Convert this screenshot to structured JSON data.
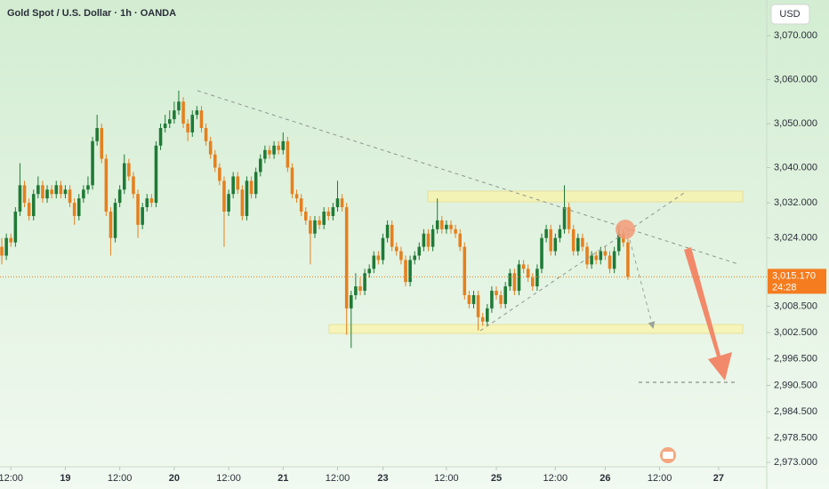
{
  "chart_data": {
    "type": "candlestick",
    "title": "Gold Spot / U.S. Dollar · 1h · OANDA",
    "currency": "USD",
    "last_price_label": "3,015.170",
    "countdown": "24:28",
    "up_color": "#1f7a36",
    "down_color": "#e5801f",
    "xlim": [
      -0.4,
      168.6
    ],
    "ylim": [
      2972,
      3078.1
    ],
    "xticks": [
      {
        "value": 2,
        "label": "12:00"
      },
      {
        "value": 14,
        "label": "19"
      },
      {
        "value": 26,
        "label": "12:00"
      },
      {
        "value": 38,
        "label": "20"
      },
      {
        "value": 50,
        "label": "12:00"
      },
      {
        "value": 62,
        "label": "21"
      },
      {
        "value": 74,
        "label": "12:00"
      },
      {
        "value": 84,
        "label": "23"
      },
      {
        "value": 98,
        "label": "12:00"
      },
      {
        "value": 109,
        "label": "25"
      },
      {
        "value": 122,
        "label": "12:00"
      },
      {
        "value": 133,
        "label": "26"
      },
      {
        "value": 145,
        "label": "12:00"
      },
      {
        "value": 158,
        "label": "27"
      }
    ],
    "yticks": [
      {
        "value": 3070,
        "label": "3,070.000"
      },
      {
        "value": 3060,
        "label": "3,060.000"
      },
      {
        "value": 3050,
        "label": "3,050.000"
      },
      {
        "value": 3040,
        "label": "3,040.000"
      },
      {
        "value": 3032,
        "label": "3,032.000"
      },
      {
        "value": 3024,
        "label": "3,024.000"
      },
      {
        "value": 3008.5,
        "label": "3,008.500"
      },
      {
        "value": 3002.5,
        "label": "3,002.500"
      },
      {
        "value": 2996.5,
        "label": "2,996.500"
      },
      {
        "value": 2990.5,
        "label": "2,990.500"
      },
      {
        "value": 2984.5,
        "label": "2,984.500"
      },
      {
        "value": 2978.5,
        "label": "2,978.500"
      },
      {
        "value": 2973,
        "label": "2,973.000"
      }
    ],
    "candles": [
      [
        3022,
        3024,
        3018,
        3020
      ],
      [
        3020,
        3025,
        3019,
        3024
      ],
      [
        3024,
        3025,
        3022,
        3023
      ],
      [
        3023,
        3031,
        3022,
        3030
      ],
      [
        3030,
        3041,
        3029,
        3036
      ],
      [
        3036,
        3037,
        3031,
        3032
      ],
      [
        3032,
        3033,
        3028,
        3029
      ],
      [
        3029,
        3035,
        3028,
        3034
      ],
      [
        3034,
        3038,
        3033,
        3036
      ],
      [
        3036,
        3037,
        3032,
        3033
      ],
      [
        3033,
        3036,
        3032,
        3035
      ],
      [
        3035,
        3036,
        3033,
        3034
      ],
      [
        3034,
        3037,
        3033,
        3036
      ],
      [
        3036,
        3037,
        3033,
        3034
      ],
      [
        3034,
        3036,
        3033,
        3035
      ],
      [
        3035,
        3036,
        3031,
        3032
      ],
      [
        3032,
        3033,
        3027,
        3029
      ],
      [
        3029,
        3034,
        3028,
        3033
      ],
      [
        3033,
        3036,
        3032,
        3035
      ],
      [
        3035,
        3038,
        3034,
        3036
      ],
      [
        3036,
        3047,
        3035,
        3046
      ],
      [
        3046,
        3052,
        3045,
        3049
      ],
      [
        3049,
        3050,
        3041,
        3042
      ],
      [
        3042,
        3043,
        3029,
        3030
      ],
      [
        3030,
        3031,
        3020,
        3024
      ],
      [
        3024,
        3033,
        3023,
        3032
      ],
      [
        3032,
        3036,
        3031,
        3035
      ],
      [
        3035,
        3043,
        3034,
        3041
      ],
      [
        3041,
        3042,
        3037,
        3038
      ],
      [
        3038,
        3039,
        3033,
        3034
      ],
      [
        3034,
        3035,
        3024,
        3027
      ],
      [
        3027,
        3032,
        3026,
        3031
      ],
      [
        3031,
        3034,
        3030,
        3033
      ],
      [
        3033,
        3034,
        3031,
        3032
      ],
      [
        3032,
        3046,
        3031,
        3045
      ],
      [
        3045,
        3050,
        3044,
        3049
      ],
      [
        3049,
        3052,
        3048,
        3050
      ],
      [
        3050,
        3053,
        3049,
        3051
      ],
      [
        3051,
        3055,
        3050,
        3053
      ],
      [
        3053,
        3057.5,
        3052,
        3055
      ],
      [
        3055,
        3056,
        3049,
        3050
      ],
      [
        3050,
        3051,
        3046,
        3048
      ],
      [
        3048,
        3053,
        3047,
        3052
      ],
      [
        3052,
        3054,
        3051,
        3053
      ],
      [
        3053,
        3054,
        3048,
        3049
      ],
      [
        3049,
        3050,
        3045,
        3046
      ],
      [
        3046,
        3047,
        3042,
        3043
      ],
      [
        3043,
        3044,
        3039,
        3040
      ],
      [
        3040,
        3041,
        3036,
        3037
      ],
      [
        3037,
        3038,
        3022,
        3030
      ],
      [
        3030,
        3035,
        3029,
        3034
      ],
      [
        3034,
        3039,
        3033,
        3038
      ],
      [
        3038,
        3039,
        3034,
        3035
      ],
      [
        3035,
        3036,
        3028,
        3029
      ],
      [
        3029,
        3038,
        3028,
        3037
      ],
      [
        3037,
        3038,
        3033,
        3034
      ],
      [
        3034,
        3040,
        3033,
        3039
      ],
      [
        3039,
        3043,
        3038,
        3042
      ],
      [
        3042,
        3045,
        3041,
        3044
      ],
      [
        3044,
        3045,
        3042,
        3043
      ],
      [
        3043,
        3046,
        3042,
        3045
      ],
      [
        3045,
        3046,
        3043,
        3044
      ],
      [
        3044,
        3048,
        3043,
        3046
      ],
      [
        3046,
        3047,
        3039,
        3040
      ],
      [
        3040,
        3041,
        3033,
        3034
      ],
      [
        3034,
        3035,
        3032,
        3033
      ],
      [
        3033,
        3034,
        3029,
        3030
      ],
      [
        3030,
        3031,
        3027,
        3028
      ],
      [
        3028,
        3029,
        3018,
        3025
      ],
      [
        3025,
        3029,
        3024,
        3028
      ],
      [
        3028,
        3029,
        3026,
        3027
      ],
      [
        3027,
        3031,
        3026,
        3030
      ],
      [
        3030,
        3031,
        3028,
        3029
      ],
      [
        3029,
        3032,
        3028,
        3031
      ],
      [
        3031,
        3037,
        3030,
        3033
      ],
      [
        3033,
        3034,
        3030,
        3031
      ],
      [
        3031,
        3032,
        3002,
        3008
      ],
      [
        3008,
        3012,
        2999,
        3011
      ],
      [
        3011,
        3016,
        3010,
        3013
      ],
      [
        3013,
        3015,
        3011,
        3012
      ],
      [
        3012,
        3017,
        3011,
        3016
      ],
      [
        3016,
        3018,
        3015,
        3017
      ],
      [
        3017,
        3021,
        3016,
        3020
      ],
      [
        3020,
        3021,
        3018,
        3019
      ],
      [
        3019,
        3025,
        3018,
        3024
      ],
      [
        3024,
        3028,
        3023,
        3027
      ],
      [
        3027,
        3028,
        3021,
        3022
      ],
      [
        3022,
        3023,
        3020,
        3021
      ],
      [
        3021,
        3022,
        3018,
        3019
      ],
      [
        3019,
        3020,
        3013,
        3014
      ],
      [
        3014,
        3020,
        3013,
        3019
      ],
      [
        3019,
        3021,
        3018,
        3020
      ],
      [
        3020,
        3023,
        3019,
        3022
      ],
      [
        3022,
        3026,
        3021,
        3025
      ],
      [
        3025,
        3026,
        3021,
        3022
      ],
      [
        3022,
        3027,
        3021,
        3026
      ],
      [
        3026,
        3033,
        3025,
        3028
      ],
      [
        3028,
        3029,
        3025,
        3026
      ],
      [
        3026,
        3028,
        3025,
        3027
      ],
      [
        3027,
        3028,
        3025,
        3026
      ],
      [
        3026,
        3027,
        3024,
        3025
      ],
      [
        3025,
        3026,
        3021,
        3022
      ],
      [
        3022,
        3023,
        3010,
        3011
      ],
      [
        3011,
        3012,
        3008,
        3009
      ],
      [
        3009,
        3012,
        3008,
        3011
      ],
      [
        3011,
        3012,
        3003,
        3006
      ],
      [
        3006,
        3007,
        3004,
        3005
      ],
      [
        3005,
        3009,
        3004,
        3008
      ],
      [
        3008,
        3013,
        3007,
        3012
      ],
      [
        3012,
        3013,
        3010,
        3011
      ],
      [
        3011,
        3012,
        3008,
        3009
      ],
      [
        3009,
        3014,
        3008,
        3013
      ],
      [
        3013,
        3017,
        3012,
        3016
      ],
      [
        3016,
        3017,
        3011,
        3012
      ],
      [
        3012,
        3019,
        3011,
        3018
      ],
      [
        3018,
        3019,
        3016,
        3017
      ],
      [
        3017,
        3018,
        3014,
        3015
      ],
      [
        3015,
        3016,
        3012,
        3013
      ],
      [
        3013,
        3018,
        3012,
        3017
      ],
      [
        3017,
        3025,
        3016,
        3024
      ],
      [
        3024,
        3027,
        3023,
        3026
      ],
      [
        3026,
        3027,
        3020,
        3021
      ],
      [
        3021,
        3025,
        3020,
        3024
      ],
      [
        3024,
        3027,
        3023,
        3026
      ],
      [
        3026,
        3036,
        3025,
        3031
      ],
      [
        3031,
        3032,
        3025,
        3026
      ],
      [
        3026,
        3027,
        3020,
        3021
      ],
      [
        3021,
        3025,
        3020,
        3024
      ],
      [
        3024,
        3025,
        3021,
        3022
      ],
      [
        3022,
        3023,
        3017,
        3018
      ],
      [
        3018,
        3021,
        3017,
        3020
      ],
      [
        3020,
        3021,
        3018,
        3019
      ],
      [
        3019,
        3022,
        3018,
        3021
      ],
      [
        3021,
        3022,
        3019,
        3020
      ],
      [
        3020,
        3021,
        3016,
        3017
      ],
      [
        3017,
        3022,
        3016,
        3021
      ],
      [
        3021,
        3026.5,
        3020,
        3025
      ],
      [
        3025,
        3026,
        3022,
        3023
      ],
      [
        3023,
        3024,
        3014.5,
        3015.17
      ]
    ]
  }
}
